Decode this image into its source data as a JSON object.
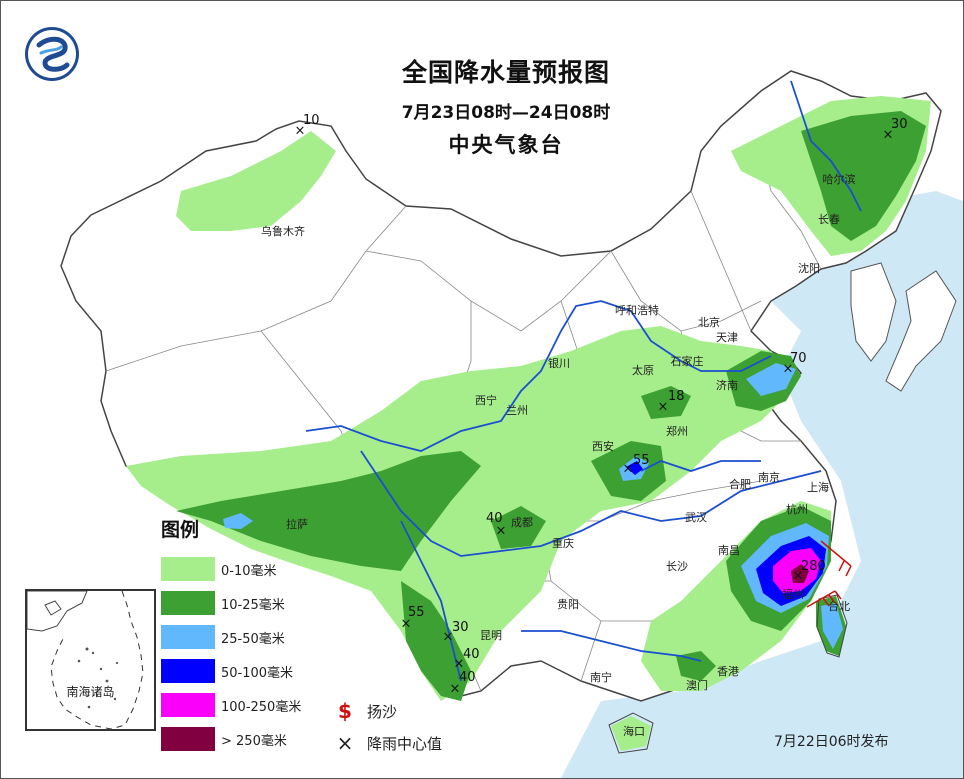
{
  "title": "全国降水量预报图",
  "period": "7月23日08时—24日08时",
  "issuer": "中央气象台",
  "release": "7月22日06时发布",
  "legend": {
    "title": "图例",
    "items": [
      {
        "label": "0-10毫米",
        "color": "#a6ed8c"
      },
      {
        "label": "10-25毫米",
        "color": "#3da032"
      },
      {
        "label": "25-50毫米",
        "color": "#61b8fd"
      },
      {
        "label": "50-100毫米",
        "color": "#0000fe"
      },
      {
        "label": "100-250毫米",
        "color": "#fa00fa"
      },
      {
        "label": "> 250毫米",
        "color": "#800040"
      }
    ],
    "symbols": [
      {
        "symbol": "$",
        "label": "扬沙"
      },
      {
        "symbol": "×",
        "label": "降雨中心值"
      }
    ]
  },
  "inset_label": "南海诸岛",
  "cities": [
    {
      "name": "乌鲁木齐"
    },
    {
      "name": "哈尔滨"
    },
    {
      "name": "长春"
    },
    {
      "name": "沈阳"
    },
    {
      "name": "呼和浩特"
    },
    {
      "name": "北京"
    },
    {
      "name": "天津"
    },
    {
      "name": "银川"
    },
    {
      "name": "太原"
    },
    {
      "name": "石家庄"
    },
    {
      "name": "济南"
    },
    {
      "name": "西宁"
    },
    {
      "name": "兰州"
    },
    {
      "name": "郑州"
    },
    {
      "name": "西安"
    },
    {
      "name": "南京"
    },
    {
      "name": "合肥"
    },
    {
      "name": "上海"
    },
    {
      "name": "拉萨"
    },
    {
      "name": "成都"
    },
    {
      "name": "武汉"
    },
    {
      "name": "杭州"
    },
    {
      "name": "重庆"
    },
    {
      "name": "南昌"
    },
    {
      "name": "长沙"
    },
    {
      "name": "福州"
    },
    {
      "name": "贵阳"
    },
    {
      "name": "昆明"
    },
    {
      "name": "台北"
    },
    {
      "name": "南宁"
    },
    {
      "name": "香港"
    },
    {
      "name": "澳门"
    },
    {
      "name": "海口"
    }
  ],
  "rain_centers": [
    {
      "value": "10"
    },
    {
      "value": "30"
    },
    {
      "value": "70"
    },
    {
      "value": "18"
    },
    {
      "value": "55"
    },
    {
      "value": "40"
    },
    {
      "value": "280"
    },
    {
      "value": "55"
    },
    {
      "value": "30"
    },
    {
      "value": "40"
    },
    {
      "value": "40"
    }
  ]
}
